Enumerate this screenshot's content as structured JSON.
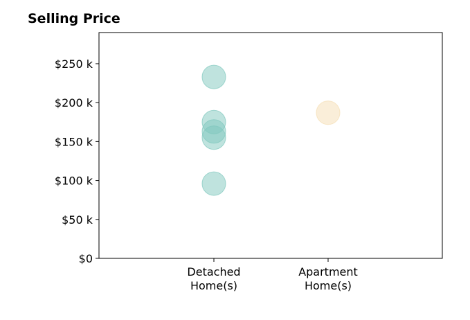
{
  "chart_data": {
    "type": "scatter",
    "title": "Selling Price",
    "categories": [
      "Detached\nHome(s)",
      "Apartment\nHome(s)"
    ],
    "ylim": [
      0,
      290000
    ],
    "yticks": [
      {
        "value": 0,
        "label": "$0"
      },
      {
        "value": 50000,
        "label": "$50 k"
      },
      {
        "value": 100000,
        "label": "$100 k"
      },
      {
        "value": 150000,
        "label": "$150 k"
      },
      {
        "value": 200000,
        "label": "$200 k"
      },
      {
        "value": 250000,
        "label": "$250 k"
      }
    ],
    "series": [
      {
        "category_index": 0,
        "values": [
          233000,
          175000,
          163000,
          155000,
          96000
        ],
        "color": "#7fc7bd"
      },
      {
        "category_index": 1,
        "values": [
          187000
        ],
        "color": "#f5deb3"
      }
    ],
    "xlabel": "",
    "ylabel": "",
    "grid": false,
    "legend": "none"
  }
}
